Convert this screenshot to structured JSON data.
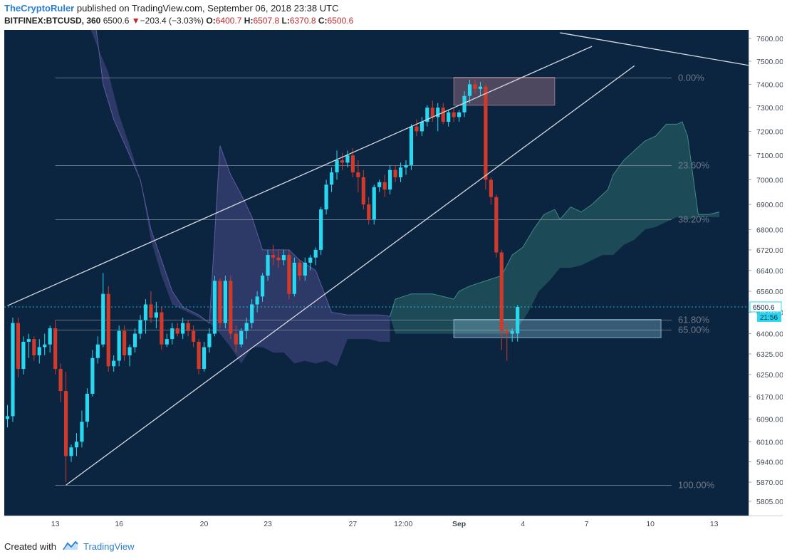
{
  "header": {
    "author": "TheCryptoRuler",
    "published_text": "published on TradingView.com, September 06, 2018 23:38 UTC",
    "symbol": "BITFINEX:BTCUSD, 360",
    "last": "6500.6",
    "change": "−203.4 (−3.03%)",
    "o_label": "O:",
    "o": "6400.7",
    "h_label": "H:",
    "h": "6507.8",
    "l_label": "L:",
    "l": "6370.8",
    "c_label": "C:",
    "c": "6500.6"
  },
  "footer": {
    "created_with": "Created with",
    "brand": "TradingView"
  },
  "chart_data": {
    "type": "candlestick",
    "symbol": "BITFINEX:BTCUSD",
    "interval": "360",
    "y_axis": {
      "scale": "log",
      "ticks": [
        7600,
        7500,
        7400,
        7300,
        7200,
        7100,
        7000,
        6900,
        6800,
        6720,
        6640,
        6560,
        6480,
        6400,
        6325,
        6250,
        6170,
        6090,
        6010,
        5940,
        5870,
        5805
      ]
    },
    "x_axis": {
      "tick_labels": [
        {
          "label": "13",
          "bar": 9
        },
        {
          "label": "16",
          "bar": 21
        },
        {
          "label": "20",
          "bar": 37
        },
        {
          "label": "23",
          "bar": 49
        },
        {
          "label": "27",
          "bar": 65
        },
        {
          "label": "12:00",
          "bar": 74.5
        },
        {
          "label": "Sep",
          "bar": 85
        },
        {
          "label": "4",
          "bar": 97
        },
        {
          "label": "7",
          "bar": 109
        },
        {
          "label": "10",
          "bar": 121
        },
        {
          "label": "13",
          "bar": 133
        }
      ]
    },
    "last_price_label": "6500.6",
    "countdown_label": "21:56",
    "fib_levels": [
      {
        "label": "0.00%",
        "price": 7430
      },
      {
        "label": "23.60%",
        "price": 7060
      },
      {
        "label": "38.20%",
        "price": 6840
      },
      {
        "label": "61.80%",
        "price": 6453
      },
      {
        "label": "65.00%",
        "price": 6415
      },
      {
        "label": "100.00%",
        "price": 5860
      }
    ],
    "candles": [
      {
        "o": 6090,
        "h": 6140,
        "l": 6060,
        "c": 6100
      },
      {
        "o": 6100,
        "h": 6460,
        "l": 6080,
        "c": 6440
      },
      {
        "o": 6440,
        "h": 6460,
        "l": 6240,
        "c": 6270
      },
      {
        "o": 6270,
        "h": 6390,
        "l": 6250,
        "c": 6370
      },
      {
        "o": 6370,
        "h": 6400,
        "l": 6310,
        "c": 6380
      },
      {
        "o": 6380,
        "h": 6390,
        "l": 6300,
        "c": 6320
      },
      {
        "o": 6320,
        "h": 6380,
        "l": 6290,
        "c": 6350
      },
      {
        "o": 6350,
        "h": 6400,
        "l": 6320,
        "c": 6360
      },
      {
        "o": 6360,
        "h": 6430,
        "l": 6330,
        "c": 6420
      },
      {
        "o": 6420,
        "h": 6450,
        "l": 6250,
        "c": 6270
      },
      {
        "o": 6270,
        "h": 6290,
        "l": 6150,
        "c": 6190
      },
      {
        "o": 6190,
        "h": 6260,
        "l": 5870,
        "c": 5960
      },
      {
        "o": 5960,
        "h": 6000,
        "l": 5940,
        "c": 5990
      },
      {
        "o": 5990,
        "h": 6040,
        "l": 5960,
        "c": 6010
      },
      {
        "o": 6010,
        "h": 6120,
        "l": 5990,
        "c": 6080
      },
      {
        "o": 6080,
        "h": 6200,
        "l": 6060,
        "c": 6180
      },
      {
        "o": 6180,
        "h": 6340,
        "l": 6170,
        "c": 6310
      },
      {
        "o": 6310,
        "h": 6390,
        "l": 6290,
        "c": 6360
      },
      {
        "o": 6360,
        "h": 6630,
        "l": 6350,
        "c": 6550
      },
      {
        "o": 6550,
        "h": 6580,
        "l": 6260,
        "c": 6280
      },
      {
        "o": 6280,
        "h": 6320,
        "l": 6260,
        "c": 6300
      },
      {
        "o": 6300,
        "h": 6430,
        "l": 6280,
        "c": 6410
      },
      {
        "o": 6410,
        "h": 6430,
        "l": 6300,
        "c": 6320
      },
      {
        "o": 6320,
        "h": 6360,
        "l": 6280,
        "c": 6350
      },
      {
        "o": 6350,
        "h": 6420,
        "l": 6330,
        "c": 6400
      },
      {
        "o": 6400,
        "h": 6470,
        "l": 6380,
        "c": 6450
      },
      {
        "o": 6450,
        "h": 6530,
        "l": 6400,
        "c": 6510
      },
      {
        "o": 6510,
        "h": 6560,
        "l": 6440,
        "c": 6460
      },
      {
        "o": 6460,
        "h": 6520,
        "l": 6420,
        "c": 6480
      },
      {
        "o": 6480,
        "h": 6500,
        "l": 6340,
        "c": 6360
      },
      {
        "o": 6360,
        "h": 6400,
        "l": 6350,
        "c": 6380
      },
      {
        "o": 6380,
        "h": 6440,
        "l": 6360,
        "c": 6420
      },
      {
        "o": 6420,
        "h": 6440,
        "l": 6390,
        "c": 6400
      },
      {
        "o": 6400,
        "h": 6460,
        "l": 6380,
        "c": 6440
      },
      {
        "o": 6440,
        "h": 6450,
        "l": 6390,
        "c": 6410
      },
      {
        "o": 6410,
        "h": 6430,
        "l": 6350,
        "c": 6370
      },
      {
        "o": 6370,
        "h": 6380,
        "l": 6250,
        "c": 6270
      },
      {
        "o": 6270,
        "h": 6370,
        "l": 6260,
        "c": 6350
      },
      {
        "o": 6350,
        "h": 6420,
        "l": 6330,
        "c": 6400
      },
      {
        "o": 6400,
        "h": 6620,
        "l": 6390,
        "c": 6600
      },
      {
        "o": 6600,
        "h": 6610,
        "l": 6420,
        "c": 6440
      },
      {
        "o": 6440,
        "h": 6620,
        "l": 6420,
        "c": 6600
      },
      {
        "o": 6600,
        "h": 6620,
        "l": 6380,
        "c": 6400
      },
      {
        "o": 6400,
        "h": 6430,
        "l": 6330,
        "c": 6360
      },
      {
        "o": 6360,
        "h": 6420,
        "l": 6350,
        "c": 6410
      },
      {
        "o": 6410,
        "h": 6460,
        "l": 6380,
        "c": 6440
      },
      {
        "o": 6440,
        "h": 6530,
        "l": 6420,
        "c": 6510
      },
      {
        "o": 6510,
        "h": 6560,
        "l": 6480,
        "c": 6540
      },
      {
        "o": 6540,
        "h": 6630,
        "l": 6520,
        "c": 6620
      },
      {
        "o": 6620,
        "h": 6720,
        "l": 6600,
        "c": 6700
      },
      {
        "o": 6700,
        "h": 6740,
        "l": 6660,
        "c": 6690
      },
      {
        "o": 6690,
        "h": 6720,
        "l": 6650,
        "c": 6680
      },
      {
        "o": 6680,
        "h": 6720,
        "l": 6660,
        "c": 6700
      },
      {
        "o": 6700,
        "h": 6720,
        "l": 6530,
        "c": 6550
      },
      {
        "o": 6550,
        "h": 6690,
        "l": 6540,
        "c": 6670
      },
      {
        "o": 6670,
        "h": 6680,
        "l": 6600,
        "c": 6620
      },
      {
        "o": 6620,
        "h": 6690,
        "l": 6600,
        "c": 6670
      },
      {
        "o": 6670,
        "h": 6700,
        "l": 6640,
        "c": 6690
      },
      {
        "o": 6690,
        "h": 6730,
        "l": 6660,
        "c": 6720
      },
      {
        "o": 6720,
        "h": 6890,
        "l": 6700,
        "c": 6880
      },
      {
        "o": 6880,
        "h": 7000,
        "l": 6860,
        "c": 6980
      },
      {
        "o": 6980,
        "h": 7050,
        "l": 6950,
        "c": 7030
      },
      {
        "o": 7030,
        "h": 7120,
        "l": 7000,
        "c": 7080
      },
      {
        "o": 7080,
        "h": 7110,
        "l": 7040,
        "c": 7070
      },
      {
        "o": 7070,
        "h": 7120,
        "l": 7050,
        "c": 7100
      },
      {
        "o": 7100,
        "h": 7130,
        "l": 7010,
        "c": 7030
      },
      {
        "o": 7030,
        "h": 7080,
        "l": 6950,
        "c": 7010
      },
      {
        "o": 7010,
        "h": 7040,
        "l": 6880,
        "c": 6900
      },
      {
        "o": 6900,
        "h": 6930,
        "l": 6820,
        "c": 6840
      },
      {
        "o": 6840,
        "h": 6980,
        "l": 6820,
        "c": 6970
      },
      {
        "o": 6970,
        "h": 7000,
        "l": 6950,
        "c": 6990
      },
      {
        "o": 6990,
        "h": 7020,
        "l": 6930,
        "c": 6960
      },
      {
        "o": 6960,
        "h": 7060,
        "l": 6940,
        "c": 7040
      },
      {
        "o": 7040,
        "h": 7060,
        "l": 6990,
        "c": 7010
      },
      {
        "o": 7010,
        "h": 7070,
        "l": 6990,
        "c": 7050
      },
      {
        "o": 7050,
        "h": 7080,
        "l": 7020,
        "c": 7060
      },
      {
        "o": 7060,
        "h": 7230,
        "l": 7040,
        "c": 7220
      },
      {
        "o": 7220,
        "h": 7250,
        "l": 7180,
        "c": 7200
      },
      {
        "o": 7200,
        "h": 7260,
        "l": 7180,
        "c": 7240
      },
      {
        "o": 7240,
        "h": 7310,
        "l": 7220,
        "c": 7300
      },
      {
        "o": 7300,
        "h": 7330,
        "l": 7240,
        "c": 7260
      },
      {
        "o": 7260,
        "h": 7320,
        "l": 7200,
        "c": 7300
      },
      {
        "o": 7300,
        "h": 7320,
        "l": 7230,
        "c": 7240
      },
      {
        "o": 7240,
        "h": 7290,
        "l": 7220,
        "c": 7280
      },
      {
        "o": 7280,
        "h": 7300,
        "l": 7240,
        "c": 7260
      },
      {
        "o": 7260,
        "h": 7290,
        "l": 7240,
        "c": 7280
      },
      {
        "o": 7280,
        "h": 7370,
        "l": 7260,
        "c": 7350
      },
      {
        "o": 7350,
        "h": 7420,
        "l": 7320,
        "c": 7400
      },
      {
        "o": 7400,
        "h": 7420,
        "l": 7360,
        "c": 7380
      },
      {
        "o": 7380,
        "h": 7410,
        "l": 7350,
        "c": 7390
      },
      {
        "o": 7390,
        "h": 7400,
        "l": 6960,
        "c": 7000
      },
      {
        "o": 7000,
        "h": 7010,
        "l": 6900,
        "c": 6930
      },
      {
        "o": 6930,
        "h": 6940,
        "l": 6690,
        "c": 6710
      },
      {
        "o": 6710,
        "h": 6720,
        "l": 6340,
        "c": 6410
      },
      {
        "o": 6410,
        "h": 6440,
        "l": 6300,
        "c": 6400
      },
      {
        "o": 6400,
        "h": 6420,
        "l": 6370,
        "c": 6410
      },
      {
        "o": 6400.7,
        "h": 6507.8,
        "l": 6370.8,
        "c": 6500.6
      }
    ],
    "colors": {
      "background": "#0b2541",
      "up": "#27d8f0",
      "down": "#d13a2a",
      "cloud_bearish": "#4b4a86",
      "cloud_bullish": "#2d6a6a",
      "trendline": "#d5d9e0",
      "fib_text": "#707a88"
    }
  }
}
